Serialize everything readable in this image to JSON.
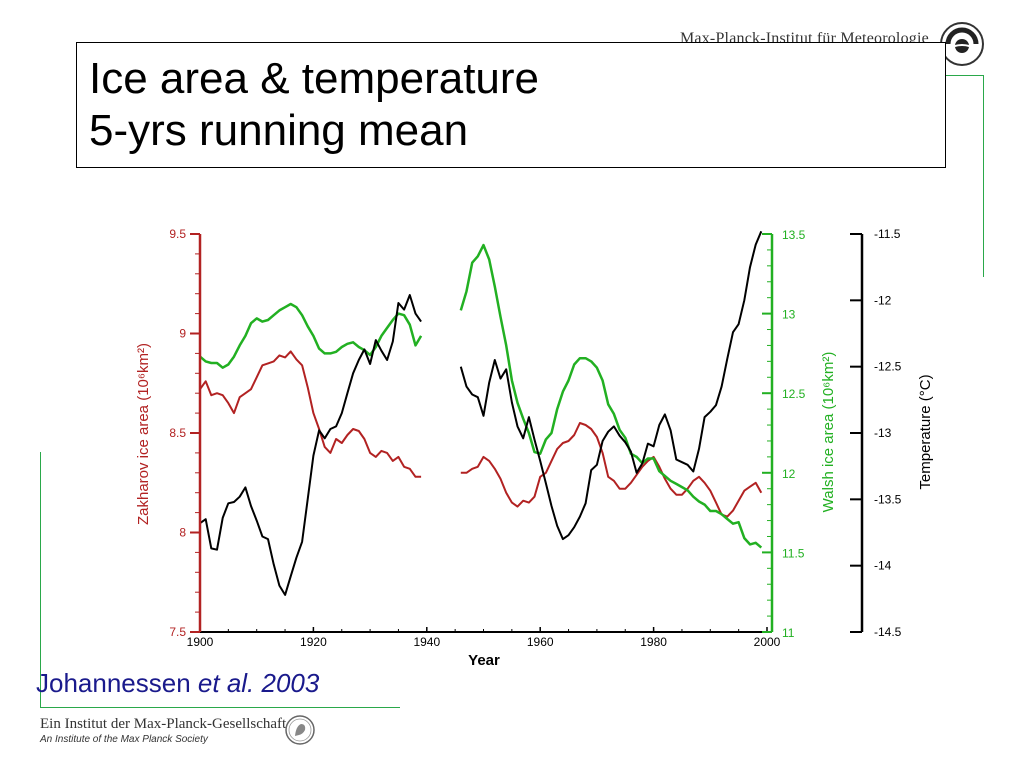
{
  "header": {
    "institute": "Max-Planck-Institut für Meteorologie"
  },
  "title": {
    "line1": "Ice area & temperature",
    "line2": "5-yrs running mean"
  },
  "citation": {
    "author": "Johannessen ",
    "etal": "et al.",
    "year": " 2003"
  },
  "footer": {
    "line_de": "Ein Institut der Max-Planck-Gesellschaft",
    "line_en": "An Institute of the Max Planck Society"
  },
  "colors": {
    "zakharov": "#b22222",
    "walsh": "#22b022",
    "temperature": "#000000",
    "citation": "#1a1a8c"
  },
  "chart_data": {
    "type": "line",
    "xlabel": "Year",
    "xlim": [
      1900,
      2000
    ],
    "x_ticks": [
      "1900",
      "1920",
      "1940",
      "1960",
      "1980",
      "2000"
    ],
    "axes": {
      "zakharov": {
        "label": "Zakharov ice area (10⁶km²)",
        "lim": [
          7.5,
          9.5
        ],
        "ticks": [
          "7.5",
          "8",
          "8.5",
          "9",
          "9.5"
        ]
      },
      "walsh": {
        "label": "Walsh ice area (10⁶km²)",
        "lim": [
          11,
          13.5
        ],
        "ticks": [
          "11",
          "11.5",
          "12",
          "12.5",
          "13",
          "13.5"
        ]
      },
      "temperature": {
        "label": "Temperature (°C)",
        "lim": [
          -14.5,
          -11.5
        ],
        "ticks": [
          "-11.5",
          "-12",
          "-12.5",
          "-13",
          "-13.5",
          "-14",
          "-14.5"
        ]
      }
    },
    "series": [
      {
        "name": "Zakharov",
        "axis": "zakharov",
        "segments": [
          {
            "x": [
              1900,
              1901,
              1902,
              1903,
              1904,
              1905,
              1906,
              1907,
              1908,
              1909,
              1910,
              1911,
              1912,
              1913,
              1914,
              1915,
              1916,
              1917,
              1918,
              1919,
              1920,
              1921,
              1922,
              1923,
              1924,
              1925,
              1926,
              1927,
              1928,
              1929,
              1930,
              1931,
              1932,
              1933,
              1934,
              1935,
              1936,
              1937,
              1938,
              1939
            ],
            "y": [
              8.72,
              8.76,
              8.69,
              8.7,
              8.69,
              8.65,
              8.6,
              8.68,
              8.7,
              8.72,
              8.78,
              8.84,
              8.85,
              8.86,
              8.89,
              8.88,
              8.91,
              8.87,
              8.84,
              8.73,
              8.6,
              8.52,
              8.43,
              8.4,
              8.47,
              8.45,
              8.49,
              8.52,
              8.51,
              8.47,
              8.4,
              8.38,
              8.41,
              8.4,
              8.36,
              8.38,
              8.33,
              8.32,
              8.28,
              8.28
            ]
          },
          {
            "x": [
              1946,
              1947,
              1948,
              1949,
              1950,
              1951,
              1952,
              1953,
              1954,
              1955,
              1956,
              1957,
              1958,
              1959,
              1960,
              1961,
              1962,
              1963,
              1964,
              1965,
              1966,
              1967,
              1968,
              1969,
              1970,
              1971,
              1972,
              1973,
              1974,
              1975,
              1976,
              1977,
              1978,
              1979,
              1980,
              1981,
              1982,
              1983,
              1984,
              1985,
              1986,
              1987,
              1988,
              1989,
              1990,
              1991,
              1992,
              1993,
              1994,
              1995,
              1996,
              1997,
              1998,
              1999
            ],
            "y": [
              8.3,
              8.3,
              8.32,
              8.33,
              8.38,
              8.36,
              8.32,
              8.27,
              8.2,
              8.15,
              8.13,
              8.16,
              8.15,
              8.18,
              8.28,
              8.3,
              8.36,
              8.42,
              8.45,
              8.46,
              8.49,
              8.55,
              8.54,
              8.52,
              8.48,
              8.4,
              8.28,
              8.26,
              8.22,
              8.22,
              8.25,
              8.29,
              8.33,
              8.36,
              8.38,
              8.33,
              8.27,
              8.22,
              8.19,
              8.19,
              8.22,
              8.26,
              8.28,
              8.25,
              8.21,
              8.15,
              8.09,
              8.08,
              8.11,
              8.16,
              8.21,
              8.23,
              8.25,
              8.2
            ]
          }
        ]
      },
      {
        "name": "Walsh",
        "axis": "walsh",
        "segments": [
          {
            "x": [
              1900,
              1901,
              1902,
              1903,
              1904,
              1905,
              1906,
              1907,
              1908,
              1909,
              1910,
              1911,
              1912,
              1913,
              1914,
              1915,
              1916,
              1917,
              1918,
              1919,
              1920,
              1921,
              1922,
              1923,
              1924,
              1925,
              1926,
              1927,
              1928,
              1929,
              1930,
              1931,
              1932,
              1933,
              1934,
              1935,
              1936,
              1937,
              1938,
              1939
            ],
            "y": [
              12.73,
              12.7,
              12.69,
              12.69,
              12.66,
              12.68,
              12.73,
              12.8,
              12.86,
              12.94,
              12.97,
              12.95,
              12.96,
              12.99,
              13.02,
              13.04,
              13.06,
              13.04,
              12.99,
              12.92,
              12.86,
              12.78,
              12.75,
              12.75,
              12.76,
              12.79,
              12.81,
              12.82,
              12.79,
              12.77,
              12.74,
              12.79,
              12.86,
              12.91,
              12.96,
              13.0,
              12.99,
              12.93,
              12.8,
              12.86
            ]
          },
          {
            "x": [
              1946,
              1947,
              1948,
              1949,
              1950,
              1951,
              1952,
              1953,
              1954,
              1955,
              1956,
              1957,
              1958,
              1959,
              1960,
              1961,
              1962,
              1963,
              1964,
              1965,
              1966,
              1967,
              1968,
              1969,
              1970,
              1971,
              1972,
              1973,
              1974,
              1975,
              1976,
              1977,
              1978,
              1979,
              1980,
              1981,
              1982,
              1983,
              1984,
              1985,
              1986,
              1987,
              1988,
              1989,
              1990,
              1991,
              1992,
              1993,
              1994,
              1995,
              1996,
              1997,
              1998,
              1999
            ],
            "y": [
              13.02,
              13.14,
              13.32,
              13.36,
              13.43,
              13.34,
              13.17,
              12.98,
              12.8,
              12.58,
              12.44,
              12.34,
              12.25,
              12.13,
              12.12,
              12.21,
              12.25,
              12.4,
              12.51,
              12.58,
              12.68,
              12.72,
              12.72,
              12.7,
              12.66,
              12.58,
              12.43,
              12.37,
              12.27,
              12.22,
              12.12,
              12.1,
              12.06,
              12.09,
              12.09,
              12.01,
              11.98,
              11.95,
              11.93,
              11.91,
              11.89,
              11.85,
              11.82,
              11.8,
              11.76,
              11.76,
              11.74,
              11.71,
              11.68,
              11.69,
              11.59,
              11.55,
              11.56,
              11.53
            ]
          }
        ]
      },
      {
        "name": "Temperature",
        "axis": "temperature",
        "segments": [
          {
            "x": [
              1900,
              1901,
              1902,
              1903,
              1904,
              1905,
              1906,
              1907,
              1908,
              1909,
              1910,
              1911,
              1912,
              1913,
              1914,
              1915,
              1916,
              1917,
              1918,
              1919,
              1920,
              1921,
              1922,
              1923,
              1924,
              1925,
              1926,
              1927,
              1928,
              1929,
              1930,
              1931,
              1932,
              1933,
              1934,
              1935,
              1936,
              1937,
              1938,
              1939
            ],
            "y": [
              -13.68,
              -13.65,
              -13.87,
              -13.88,
              -13.64,
              -13.53,
              -13.52,
              -13.48,
              -13.41,
              -13.55,
              -13.66,
              -13.78,
              -13.8,
              -13.99,
              -14.15,
              -14.22,
              -14.08,
              -13.94,
              -13.82,
              -13.5,
              -13.17,
              -12.98,
              -13.04,
              -12.97,
              -12.95,
              -12.85,
              -12.7,
              -12.55,
              -12.45,
              -12.37,
              -12.48,
              -12.3,
              -12.38,
              -12.45,
              -12.31,
              -12.02,
              -12.07,
              -11.96,
              -12.1,
              -12.16
            ]
          },
          {
            "x": [
              1946,
              1947,
              1948,
              1949,
              1950,
              1951,
              1952,
              1953,
              1954,
              1955,
              1956,
              1957,
              1958,
              1959,
              1960,
              1961,
              1962,
              1963,
              1964,
              1965,
              1966,
              1967,
              1968,
              1969,
              1970,
              1971,
              1972,
              1973,
              1974,
              1975,
              1976,
              1977,
              1978,
              1979,
              1980,
              1981,
              1982,
              1983,
              1984,
              1985,
              1986,
              1987,
              1988,
              1989,
              1990,
              1991,
              1992,
              1993,
              1994,
              1995,
              1996,
              1997,
              1998,
              1999
            ],
            "y": [
              -12.5,
              -12.65,
              -12.71,
              -12.73,
              -12.87,
              -12.62,
              -12.45,
              -12.59,
              -12.52,
              -12.77,
              -12.95,
              -13.04,
              -12.88,
              -13.05,
              -13.21,
              -13.38,
              -13.55,
              -13.7,
              -13.8,
              -13.77,
              -13.71,
              -13.63,
              -13.53,
              -13.28,
              -13.24,
              -13.06,
              -12.99,
              -12.95,
              -13.02,
              -13.07,
              -13.14,
              -13.3,
              -13.23,
              -13.08,
              -13.1,
              -12.94,
              -12.86,
              -12.98,
              -13.2,
              -13.22,
              -13.24,
              -13.29,
              -13.12,
              -12.88,
              -12.84,
              -12.79,
              -12.65,
              -12.44,
              -12.24,
              -12.18,
              -12.0,
              -11.75,
              -11.58,
              -11.48
            ]
          }
        ]
      }
    ]
  }
}
